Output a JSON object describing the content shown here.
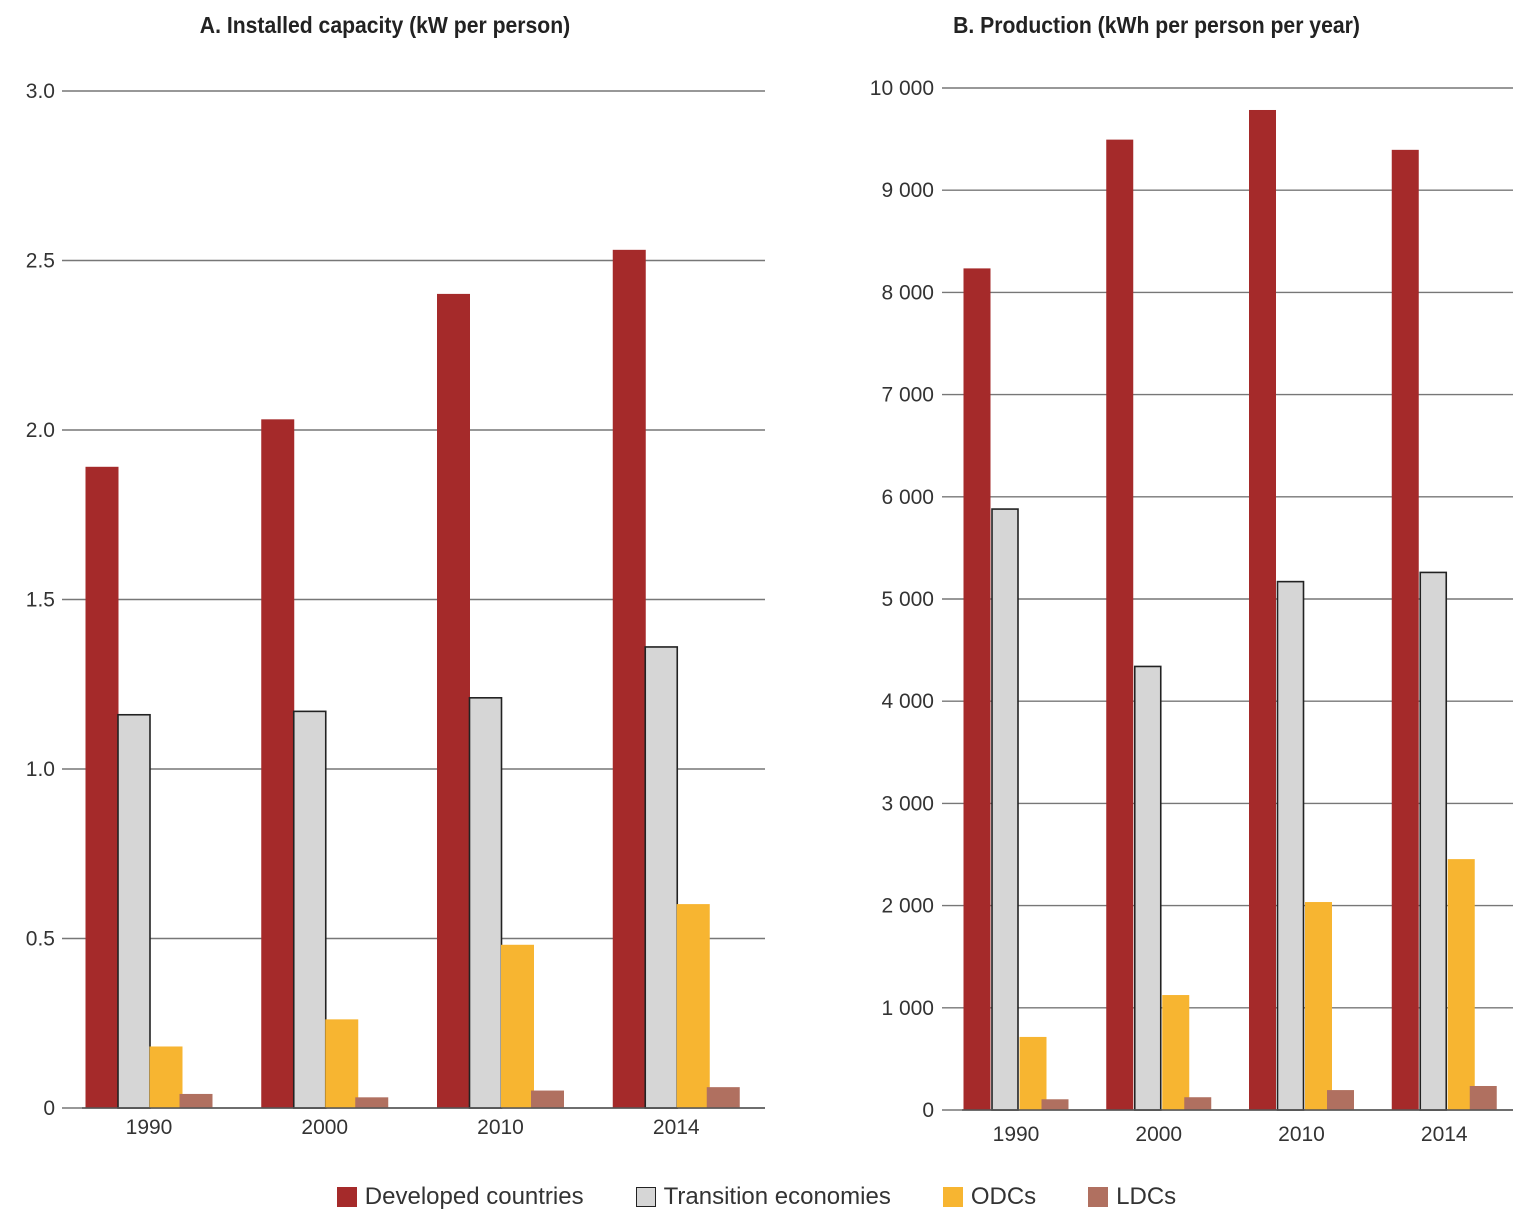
{
  "chart_data": [
    {
      "type": "bar",
      "title": "A. Installed capacity (kW per person)",
      "categories": [
        "1990",
        "2000",
        "2010",
        "2014"
      ],
      "yticks": [
        "0",
        "0.5",
        "1.0",
        "1.5",
        "2.0",
        "2.5",
        "3.0"
      ],
      "ylim": [
        0,
        3.0
      ],
      "grid": true,
      "series": [
        {
          "name": "Developed countries",
          "values": [
            1.89,
            2.03,
            2.4,
            2.53
          ]
        },
        {
          "name": "Transition economies",
          "values": [
            1.16,
            1.17,
            1.21,
            1.36
          ]
        },
        {
          "name": "ODCs",
          "values": [
            0.18,
            0.26,
            0.48,
            0.6
          ]
        },
        {
          "name": "LDCs",
          "values": [
            0.04,
            0.03,
            0.05,
            0.06
          ]
        }
      ]
    },
    {
      "type": "bar",
      "title": "B. Production (kWh per person per year)",
      "categories": [
        "1990",
        "2000",
        "2010",
        "2014"
      ],
      "yticks": [
        "0",
        "1 000",
        "2 000",
        "3 000",
        "4 000",
        "5 000",
        "6 000",
        "7 000",
        "8 000",
        "9 000",
        "10 000"
      ],
      "ylim": [
        0,
        10000
      ],
      "grid": true,
      "series": [
        {
          "name": "Developed countries",
          "values": [
            8230,
            9490,
            9780,
            9390
          ]
        },
        {
          "name": "Transition economies",
          "values": [
            5880,
            4340,
            5170,
            5260
          ]
        },
        {
          "name": "ODCs",
          "values": [
            710,
            1120,
            2030,
            2450
          ]
        },
        {
          "name": "LDCs",
          "values": [
            100,
            120,
            190,
            230
          ]
        }
      ]
    }
  ],
  "legend": {
    "placement": "bottom-center",
    "items": [
      {
        "label": "Developed countries",
        "color": "#a52a2a",
        "border": "#a52a2a"
      },
      {
        "label": "Transition economies",
        "color": "#d6d6d6",
        "border": "#222222"
      },
      {
        "label": "ODCs",
        "color": "#f7b531",
        "border": "#f7b531"
      },
      {
        "label": "LDCs",
        "color": "#b07060",
        "border": "#b07060"
      }
    ]
  },
  "colors": {
    "developed": "#a52a2a",
    "transition": "#d6d6d6",
    "transition_border": "#222222",
    "odcs": "#f7b531",
    "ldcs": "#b07060",
    "grid": "#777777"
  }
}
